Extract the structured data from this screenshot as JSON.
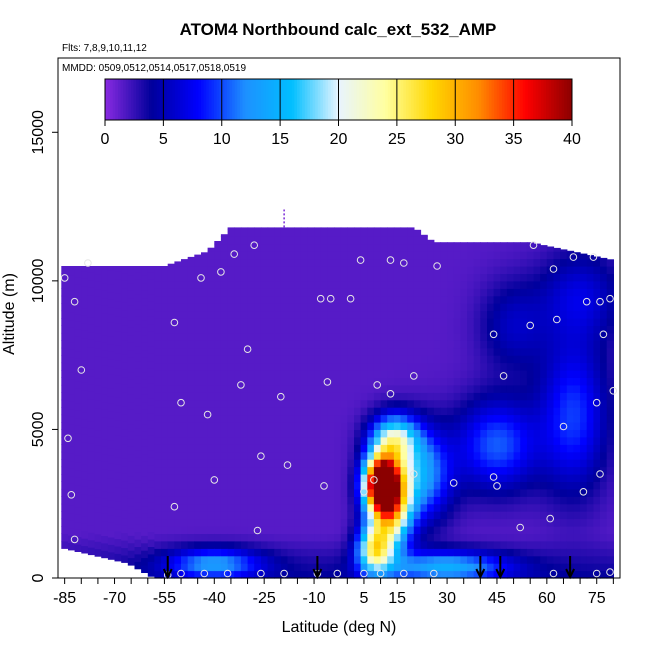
{
  "chart_data": {
    "type": "heatmap",
    "title": "ATOM4 Northbound calc_ext_532_AMP",
    "subtitle_flights": "Flts: 7,8,9,10,11,12",
    "subtitle_dates": "MMDD: 0509,0512,0514,0517,0518,0519",
    "xlabel": "Latitude (deg N)",
    "ylabel": "Altitude (m)",
    "xlim": [
      -87,
      82
    ],
    "ylim": [
      0,
      17500
    ],
    "x_ticks": [
      -85,
      -70,
      -55,
      -40,
      -25,
      -10,
      5,
      15,
      30,
      45,
      60,
      75
    ],
    "y_ticks": [
      0,
      5000,
      10000,
      15000
    ],
    "colorbar": {
      "ticks": [
        0,
        5,
        10,
        15,
        20,
        25,
        30,
        35,
        40
      ],
      "range": [
        0,
        40
      ],
      "colors": [
        "#8a2be2",
        "#00009b",
        "#0000ff",
        "#1e90ff",
        "#00bfff",
        "#e8f4ff",
        "#ffffa0",
        "#ffd700",
        "#ff8c00",
        "#ff0000",
        "#8b0000"
      ]
    },
    "ceiling_profile": [
      {
        "x": -85,
        "top": 10500
      },
      {
        "x": -55,
        "top": 10500
      },
      {
        "x": -42,
        "top": 11000
      },
      {
        "x": -35,
        "top": 11800
      },
      {
        "x": 20,
        "top": 11800
      },
      {
        "x": 26,
        "top": 11300
      },
      {
        "x": 45,
        "top": 11300
      },
      {
        "x": 55,
        "top": 11300
      },
      {
        "x": 80,
        "top": 10700
      }
    ],
    "floor_profile": [
      {
        "x": -85,
        "top": 1000
      },
      {
        "x": -66,
        "top": 500
      },
      {
        "x": -58,
        "top": 0
      },
      {
        "x": 80,
        "top": 0
      }
    ],
    "hotspots": [
      {
        "x": 10,
        "y": 3200,
        "value": 38,
        "spread_x": 5,
        "spread_y": 900
      },
      {
        "x": 13,
        "y": 2500,
        "value": 26,
        "spread_x": 6,
        "spread_y": 1500
      },
      {
        "x": 8,
        "y": 1000,
        "value": 20,
        "spread_x": 5,
        "spread_y": 800
      },
      {
        "x": 14,
        "y": 4700,
        "value": 16,
        "spread_x": 7,
        "spread_y": 800
      },
      {
        "x": 22,
        "y": 3500,
        "value": 12,
        "spread_x": 9,
        "spread_y": 1500
      },
      {
        "x": -40,
        "y": 500,
        "value": 10,
        "spread_x": 14,
        "spread_y": 500
      },
      {
        "x": 30,
        "y": 400,
        "value": 11,
        "spread_x": 18,
        "spread_y": 500
      },
      {
        "x": 45,
        "y": 4500,
        "value": 9,
        "spread_x": 12,
        "spread_y": 1500
      },
      {
        "x": 68,
        "y": 5500,
        "value": 8,
        "spread_x": 10,
        "spread_y": 2500
      },
      {
        "x": 70,
        "y": 9500,
        "value": 5,
        "spread_x": 12,
        "spread_y": 1500
      },
      {
        "x": 50,
        "y": 8500,
        "value": 4,
        "spread_x": 10,
        "spread_y": 1500
      }
    ],
    "sample_points": [
      {
        "x": -85,
        "y": 10100
      },
      {
        "x": -78,
        "y": 10600
      },
      {
        "x": -82,
        "y": 9300
      },
      {
        "x": -80,
        "y": 7000
      },
      {
        "x": -84,
        "y": 4700
      },
      {
        "x": -83,
        "y": 2800
      },
      {
        "x": -82,
        "y": 1300
      },
      {
        "x": -52,
        "y": 8600
      },
      {
        "x": -50,
        "y": 5900
      },
      {
        "x": -52,
        "y": 2400
      },
      {
        "x": -44,
        "y": 10100
      },
      {
        "x": -38,
        "y": 10300
      },
      {
        "x": -34,
        "y": 10900
      },
      {
        "x": -42,
        "y": 5500
      },
      {
        "x": -40,
        "y": 3300
      },
      {
        "x": -32,
        "y": 6500
      },
      {
        "x": -30,
        "y": 7700
      },
      {
        "x": -28,
        "y": 11200
      },
      {
        "x": -26,
        "y": 4100
      },
      {
        "x": -20,
        "y": 6100
      },
      {
        "x": -18,
        "y": 3800
      },
      {
        "x": -27,
        "y": 1600
      },
      {
        "x": -8,
        "y": 9400
      },
      {
        "x": -5,
        "y": 9400
      },
      {
        "x": -6,
        "y": 6600
      },
      {
        "x": 1,
        "y": 9400
      },
      {
        "x": 4,
        "y": 10700
      },
      {
        "x": 13,
        "y": 10700
      },
      {
        "x": 17,
        "y": 10600
      },
      {
        "x": 13,
        "y": 6200
      },
      {
        "x": 20,
        "y": 6800
      },
      {
        "x": 27,
        "y": 10500
      },
      {
        "x": 9,
        "y": 6500
      },
      {
        "x": -7,
        "y": 3100
      },
      {
        "x": 5,
        "y": 2900
      },
      {
        "x": 8,
        "y": 3300
      },
      {
        "x": 20,
        "y": 3500
      },
      {
        "x": 32,
        "y": 3200
      },
      {
        "x": 44,
        "y": 3400
      },
      {
        "x": 45,
        "y": 3100
      },
      {
        "x": 44,
        "y": 8200
      },
      {
        "x": 47,
        "y": 6800
      },
      {
        "x": 55,
        "y": 8500
      },
      {
        "x": 56,
        "y": 11200
      },
      {
        "x": 62,
        "y": 10400
      },
      {
        "x": 63,
        "y": 8700
      },
      {
        "x": 65,
        "y": 5100
      },
      {
        "x": 68,
        "y": 10800
      },
      {
        "x": 72,
        "y": 9300
      },
      {
        "x": 74,
        "y": 10800
      },
      {
        "x": 76,
        "y": 9300
      },
      {
        "x": 77,
        "y": 8200
      },
      {
        "x": 79,
        "y": 9400
      },
      {
        "x": 76,
        "y": 3500
      },
      {
        "x": 71,
        "y": 2900
      },
      {
        "x": 75,
        "y": 5900
      },
      {
        "x": 80,
        "y": 6300
      },
      {
        "x": 52,
        "y": 1700
      },
      {
        "x": 61,
        "y": 2000
      },
      {
        "x": -54,
        "y": 100
      },
      {
        "x": -50,
        "y": 150
      },
      {
        "x": -43,
        "y": 150
      },
      {
        "x": -36,
        "y": 150
      },
      {
        "x": -26,
        "y": 150
      },
      {
        "x": -19,
        "y": 150
      },
      {
        "x": -9,
        "y": 150
      },
      {
        "x": -3,
        "y": 150
      },
      {
        "x": 5,
        "y": 150
      },
      {
        "x": 10,
        "y": 150
      },
      {
        "x": 17,
        "y": 150
      },
      {
        "x": 26,
        "y": 150
      },
      {
        "x": 62,
        "y": 150
      },
      {
        "x": 75,
        "y": 150
      },
      {
        "x": 79,
        "y": 200
      }
    ],
    "arrows_x": [
      -54,
      -9,
      40,
      46,
      67
    ],
    "vertical_mark": {
      "x": -19,
      "y_min": 11800,
      "y_max": 12400
    }
  }
}
